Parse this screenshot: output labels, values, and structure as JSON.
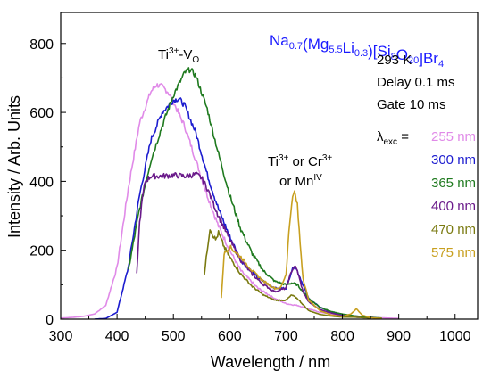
{
  "chart_data": {
    "type": "line",
    "title": "",
    "xlabel": "Wavelength / nm",
    "ylabel": "Intensity / Arb. Units",
    "xlim": [
      300,
      1040
    ],
    "ylim": [
      0,
      890
    ],
    "xticks": [
      300,
      400,
      500,
      600,
      700,
      800,
      900,
      1000
    ],
    "yticks": [
      0,
      200,
      400,
      600,
      800
    ],
    "grid": false,
    "formula": {
      "main": "Na",
      "parts": [
        {
          "t": "Na",
          "s": ""
        },
        {
          "t": "0.7",
          "s": "sub"
        },
        {
          "t": "(Mg",
          "s": ""
        },
        {
          "t": "5.5",
          "s": "sub"
        },
        {
          "t": "Li",
          "s": ""
        },
        {
          "t": "0.3",
          "s": "sub"
        },
        {
          "t": ")[Si",
          "s": ""
        },
        {
          "t": "8",
          "s": "sub"
        },
        {
          "t": "O",
          "s": ""
        },
        {
          "t": "20",
          "s": "sub"
        },
        {
          "t": "]Br",
          "s": ""
        },
        {
          "t": "4",
          "s": "sub"
        }
      ],
      "color": "#1a1aff"
    },
    "conditions": [
      "293 K",
      "Delay 0.1 ms",
      "Gate 10 ms"
    ],
    "legend_symbol": {
      "base": "λ",
      "sub": "exc",
      "suffix": " = "
    },
    "annotations": {
      "ti_vo": {
        "a": "Ti",
        "sup": "3+",
        "b": "-V",
        "sub": "O"
      },
      "ti_cr_line1": {
        "a": "Ti",
        "sup1": "3+",
        "b": " or Cr",
        "sup2": "3+"
      },
      "ti_cr_line2": {
        "a": "or Mn",
        "sup": "IV"
      }
    },
    "series": [
      {
        "name": "255 nm",
        "color": "#e08ae8",
        "x": [
          300,
          320,
          340,
          360,
          380,
          400,
          420,
          440,
          460,
          470,
          480,
          490,
          500,
          520,
          540,
          560,
          580,
          600,
          620,
          650,
          680,
          700,
          710,
          720,
          740,
          760,
          800,
          850,
          900
        ],
        "y": [
          3,
          5,
          8,
          15,
          40,
          150,
          380,
          570,
          660,
          680,
          675,
          660,
          630,
          560,
          460,
          360,
          270,
          200,
          140,
          90,
          60,
          45,
          42,
          40,
          30,
          20,
          10,
          5,
          2
        ]
      },
      {
        "name": "300 nm",
        "color": "#1c1ccf",
        "x": [
          360,
          380,
          400,
          420,
          440,
          460,
          480,
          500,
          510,
          520,
          540,
          560,
          580,
          600,
          620,
          650,
          680,
          700,
          710,
          715,
          720,
          740,
          760,
          780,
          800,
          830,
          860
        ],
        "y": [
          0,
          2,
          20,
          150,
          360,
          520,
          600,
          635,
          640,
          620,
          540,
          420,
          320,
          240,
          170,
          120,
          90,
          90,
          140,
          155,
          140,
          60,
          35,
          20,
          12,
          8,
          4
        ]
      },
      {
        "name": "365 nm",
        "color": "#1f7a1f",
        "x": [
          420,
          430,
          440,
          460,
          480,
          500,
          520,
          530,
          540,
          560,
          580,
          600,
          620,
          640,
          660,
          680,
          700,
          710,
          720,
          740,
          760,
          780,
          800,
          820,
          840,
          870
        ],
        "y": [
          140,
          230,
          320,
          460,
          560,
          650,
          715,
          725,
          705,
          610,
          480,
          360,
          260,
          190,
          140,
          110,
          100,
          105,
          100,
          60,
          35,
          22,
          15,
          10,
          6,
          3
        ]
      },
      {
        "name": "400 nm",
        "color": "#6a1a8a",
        "x": [
          435,
          440,
          445,
          450,
          460,
          480,
          500,
          520,
          540,
          550,
          560,
          580,
          600,
          620,
          640,
          660,
          680,
          700,
          710,
          715,
          720,
          730,
          740,
          760,
          780,
          800,
          830
        ],
        "y": [
          130,
          280,
          350,
          400,
          415,
          415,
          418,
          415,
          420,
          410,
          380,
          300,
          230,
          170,
          130,
          100,
          80,
          90,
          140,
          155,
          140,
          80,
          50,
          28,
          18,
          10,
          5
        ]
      },
      {
        "name": "470 nm",
        "color": "#7a7a10",
        "x": [
          555,
          560,
          565,
          570,
          575,
          580,
          590,
          600,
          620,
          640,
          660,
          680,
          700,
          710,
          720,
          740,
          760,
          780,
          800,
          820,
          830,
          850
        ],
        "y": [
          130,
          200,
          265,
          245,
          230,
          250,
          210,
          180,
          130,
          95,
          70,
          55,
          55,
          70,
          60,
          25,
          14,
          9,
          6,
          6,
          5,
          3
        ]
      },
      {
        "name": "575 nm",
        "color": "#c8a020",
        "x": [
          585,
          590,
          600,
          620,
          640,
          660,
          680,
          690,
          700,
          705,
          710,
          715,
          720,
          725,
          730,
          740,
          760,
          780,
          800,
          815,
          825,
          835,
          850,
          870
        ],
        "y": [
          60,
          190,
          210,
          180,
          140,
          110,
          90,
          90,
          130,
          250,
          340,
          370,
          330,
          220,
          120,
          55,
          25,
          12,
          8,
          15,
          30,
          12,
          4,
          2
        ]
      }
    ]
  }
}
